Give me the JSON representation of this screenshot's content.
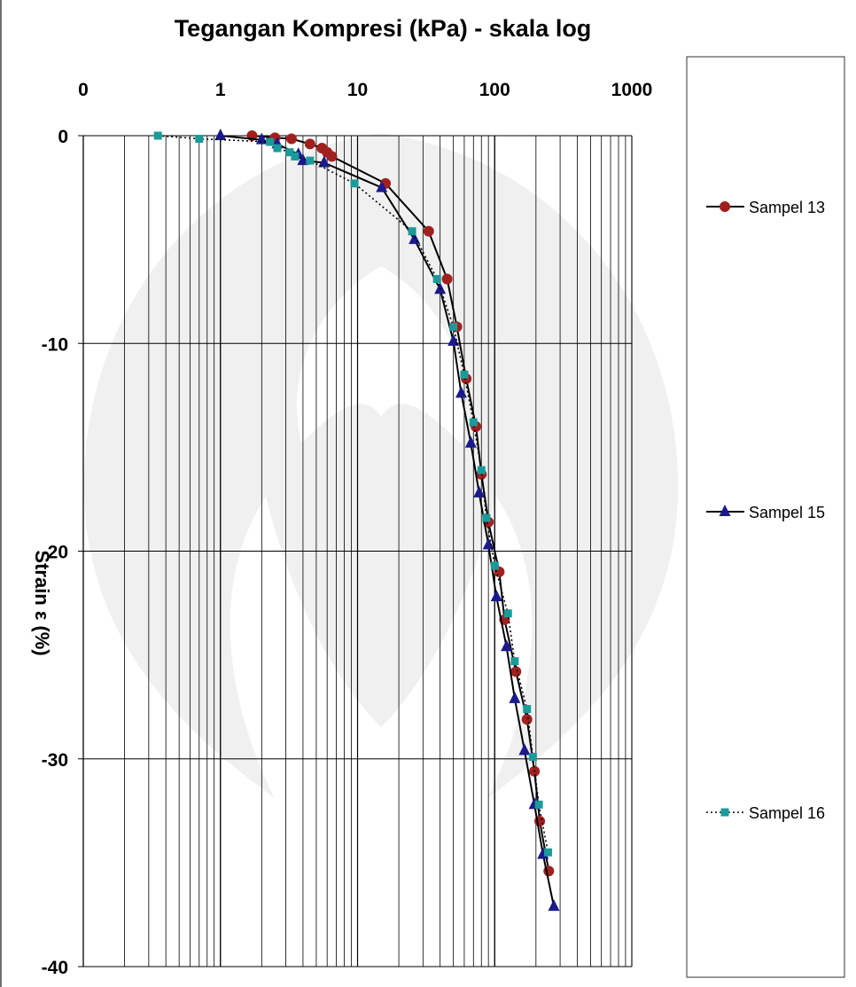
{
  "chart_data": {
    "type": "line",
    "title": "Tegangan Kompresi (kPa) - skala log",
    "xlabel": "",
    "ylabel": "Strain ε (%)",
    "x_scale": "log",
    "xlim": [
      0.1,
      1000
    ],
    "ylim": [
      -40,
      0
    ],
    "x_tick_labels": [
      "0",
      "1",
      "10",
      "100",
      "1000"
    ],
    "y_ticks": [
      0,
      -10,
      -20,
      -30,
      -40
    ],
    "grid": true,
    "legend_position": "right",
    "series": [
      {
        "name": "Sampel 13",
        "color": "#a0201e",
        "line_style": "solid",
        "marker": "circle",
        "points": [
          [
            1.7,
            0.0
          ],
          [
            2.5,
            -0.1
          ],
          [
            3.3,
            -0.15
          ],
          [
            4.5,
            -0.4
          ],
          [
            5.5,
            -0.6
          ],
          [
            6.0,
            -0.8
          ],
          [
            6.5,
            -1.0
          ],
          [
            16.0,
            -2.3
          ],
          [
            33.0,
            -4.6
          ],
          [
            45.0,
            -6.9
          ],
          [
            53.0,
            -9.2
          ],
          [
            62.0,
            -11.7
          ],
          [
            73.0,
            -14.0
          ],
          [
            80.0,
            -16.3
          ],
          [
            90.0,
            -18.6
          ],
          [
            108.0,
            -21.0
          ],
          [
            118.0,
            -23.3
          ],
          [
            143.0,
            -25.8
          ],
          [
            172.0,
            -28.1
          ],
          [
            195.0,
            -30.6
          ],
          [
            213.0,
            -33.0
          ],
          [
            248.0,
            -35.4
          ]
        ]
      },
      {
        "name": "Sampel 15",
        "color": "#1a1a8c",
        "line_style": "solid",
        "marker": "triangle",
        "points": [
          [
            1.0,
            0.0
          ],
          [
            2.0,
            -0.2
          ],
          [
            2.6,
            -0.4
          ],
          [
            3.7,
            -0.9
          ],
          [
            4.0,
            -1.2
          ],
          [
            5.7,
            -1.3
          ],
          [
            15.0,
            -2.5
          ],
          [
            26.0,
            -5.0
          ],
          [
            40.0,
            -7.4
          ],
          [
            50.0,
            -9.9
          ],
          [
            57.0,
            -12.4
          ],
          [
            67.0,
            -14.8
          ],
          [
            77.0,
            -17.2
          ],
          [
            90.0,
            -19.7
          ],
          [
            103.0,
            -22.2
          ],
          [
            122.0,
            -24.6
          ],
          [
            140.0,
            -27.1
          ],
          [
            165.0,
            -29.6
          ],
          [
            195.0,
            -32.2
          ],
          [
            225.0,
            -34.6
          ],
          [
            270.0,
            -37.1
          ]
        ]
      },
      {
        "name": "Sampel 16",
        "color": "#1a9a98",
        "line_style": "dotted",
        "marker": "square",
        "points": [
          [
            0.35,
            0.0
          ],
          [
            0.7,
            -0.15
          ],
          [
            2.3,
            -0.3
          ],
          [
            2.6,
            -0.6
          ],
          [
            3.2,
            -0.8
          ],
          [
            3.5,
            -1.0
          ],
          [
            4.5,
            -1.2
          ],
          [
            9.5,
            -2.3
          ],
          [
            25.0,
            -4.6
          ],
          [
            38.0,
            -6.9
          ],
          [
            50.0,
            -9.2
          ],
          [
            60.0,
            -11.5
          ],
          [
            70.0,
            -13.8
          ],
          [
            80.0,
            -16.1
          ],
          [
            87.0,
            -18.4
          ],
          [
            100.0,
            -20.7
          ],
          [
            125.0,
            -23.0
          ],
          [
            140.0,
            -25.3
          ],
          [
            172.0,
            -27.6
          ],
          [
            190.0,
            -29.9
          ],
          [
            210.0,
            -32.2
          ],
          [
            245.0,
            -34.5
          ]
        ]
      }
    ]
  }
}
